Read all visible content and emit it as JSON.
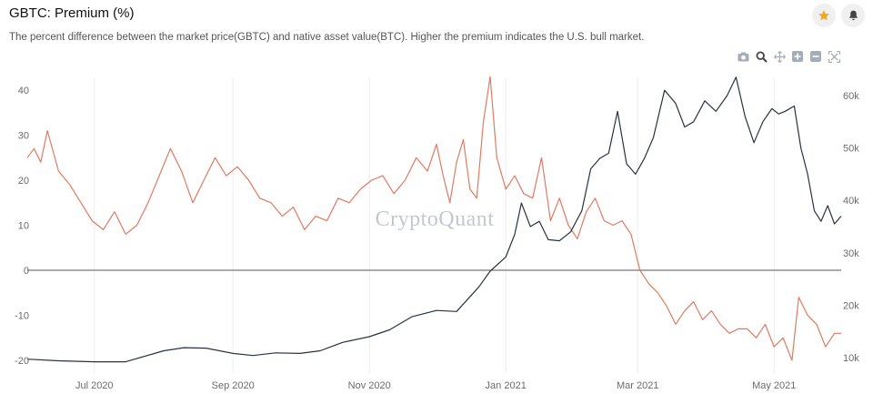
{
  "header": {
    "title": "GBTC: Premium (%)",
    "subtitle": "The percent difference between the market price(GBTC) and native asset value(BTC). Higher the premium indicates the U.S. bull market.",
    "star_icon": "star-icon",
    "bell_icon": "bell-icon",
    "accent": "#f5a623"
  },
  "modebar": [
    "camera-icon",
    "zoom-icon",
    "pan-icon",
    "zoom-in-icon",
    "zoom-out-icon",
    "autoscale-icon"
  ],
  "watermark": "CryptoQuant",
  "chart_data": {
    "type": "line",
    "x_range": [
      "2020-06-01",
      "2021-05-31"
    ],
    "x_ticks": [
      {
        "date": "2020-07-01",
        "label": "Jul 2020"
      },
      {
        "date": "2020-09-01",
        "label": "Sep 2020"
      },
      {
        "date": "2020-11-01",
        "label": "Nov 2020"
      },
      {
        "date": "2021-01-01",
        "label": "Jan 2021"
      },
      {
        "date": "2021-03-01",
        "label": "Mar 2021"
      },
      {
        "date": "2021-05-01",
        "label": "May 2021"
      }
    ],
    "y_left": {
      "range": [
        -20,
        44
      ],
      "ticks": [
        "40",
        "30",
        "20",
        "10",
        "0",
        "-10",
        "-20"
      ],
      "tick_values": [
        40,
        30,
        20,
        10,
        0,
        -10,
        -20
      ]
    },
    "y_right": {
      "range": [
        8000,
        66000
      ],
      "ticks": [
        "60k",
        "50k",
        "40k",
        "30k",
        "20k",
        "10k"
      ],
      "tick_values": [
        60000,
        50000,
        40000,
        30000,
        20000,
        10000
      ]
    },
    "zero_line": 0,
    "grid": "vertical",
    "series": [
      {
        "axis": "left",
        "color": "#e07a63",
        "x": [
          "2020-06-01",
          "2020-06-04",
          "2020-06-07",
          "2020-06-10",
          "2020-06-15",
          "2020-06-20",
          "2020-06-25",
          "2020-06-30",
          "2020-07-05",
          "2020-07-10",
          "2020-07-15",
          "2020-07-20",
          "2020-07-25",
          "2020-07-30",
          "2020-08-04",
          "2020-08-09",
          "2020-08-14",
          "2020-08-19",
          "2020-08-24",
          "2020-08-29",
          "2020-09-03",
          "2020-09-08",
          "2020-09-13",
          "2020-09-18",
          "2020-09-23",
          "2020-09-28",
          "2020-10-03",
          "2020-10-08",
          "2020-10-13",
          "2020-10-18",
          "2020-10-23",
          "2020-10-28",
          "2020-11-02",
          "2020-11-07",
          "2020-11-12",
          "2020-11-17",
          "2020-11-22",
          "2020-11-27",
          "2020-12-01",
          "2020-12-04",
          "2020-12-07",
          "2020-12-10",
          "2020-12-13",
          "2020-12-16",
          "2020-12-19",
          "2020-12-22",
          "2020-12-25",
          "2020-12-28",
          "2021-01-01",
          "2021-01-05",
          "2021-01-09",
          "2021-01-13",
          "2021-01-17",
          "2021-01-21",
          "2021-01-25",
          "2021-01-29",
          "2021-02-02",
          "2021-02-06",
          "2021-02-10",
          "2021-02-14",
          "2021-02-18",
          "2021-02-22",
          "2021-02-26",
          "2021-03-02",
          "2021-03-06",
          "2021-03-10",
          "2021-03-14",
          "2021-03-18",
          "2021-03-22",
          "2021-03-26",
          "2021-03-30",
          "2021-04-03",
          "2021-04-07",
          "2021-04-11",
          "2021-04-15",
          "2021-04-19",
          "2021-04-23",
          "2021-04-27",
          "2021-05-01",
          "2021-05-05",
          "2021-05-09",
          "2021-05-12",
          "2021-05-16",
          "2021-05-20",
          "2021-05-24",
          "2021-05-28",
          "2021-05-31"
        ],
        "values": [
          25,
          27,
          24,
          31,
          22,
          19,
          15,
          11,
          9,
          13,
          8,
          10,
          15,
          21,
          27,
          22,
          15,
          20,
          25,
          21,
          23,
          20,
          16,
          15,
          12,
          14,
          9,
          12,
          11,
          16,
          15,
          18,
          20,
          21,
          17,
          20,
          25,
          22,
          28,
          21,
          15,
          24,
          29,
          18,
          16,
          33,
          43,
          25,
          18,
          21,
          17,
          16,
          25,
          11,
          16,
          10,
          7,
          13,
          16,
          11,
          10,
          11,
          8,
          0,
          -3,
          -5,
          -8,
          -12,
          -9,
          -7,
          -11,
          -9,
          -12,
          -14,
          -13,
          -13,
          -15,
          -12,
          -17,
          -15,
          -20,
          -6,
          -10,
          -12,
          -17,
          -14,
          -14
        ]
      },
      {
        "axis": "right",
        "color": "#2a3140",
        "x": [
          "2020-06-01",
          "2020-06-15",
          "2020-07-01",
          "2020-07-15",
          "2020-08-01",
          "2020-08-10",
          "2020-08-20",
          "2020-09-01",
          "2020-09-10",
          "2020-09-20",
          "2020-10-01",
          "2020-10-10",
          "2020-10-20",
          "2020-11-01",
          "2020-11-10",
          "2020-11-20",
          "2020-12-01",
          "2020-12-10",
          "2020-12-20",
          "2020-12-25",
          "2021-01-01",
          "2021-01-05",
          "2021-01-08",
          "2021-01-12",
          "2021-01-16",
          "2021-01-20",
          "2021-01-25",
          "2021-01-30",
          "2021-02-04",
          "2021-02-08",
          "2021-02-12",
          "2021-02-16",
          "2021-02-20",
          "2021-02-24",
          "2021-02-28",
          "2021-03-04",
          "2021-03-08",
          "2021-03-13",
          "2021-03-18",
          "2021-03-22",
          "2021-03-26",
          "2021-03-31",
          "2021-04-05",
          "2021-04-10",
          "2021-04-14",
          "2021-04-18",
          "2021-04-22",
          "2021-04-26",
          "2021-04-30",
          "2021-05-03",
          "2021-05-06",
          "2021-05-10",
          "2021-05-13",
          "2021-05-16",
          "2021-05-19",
          "2021-05-22",
          "2021-05-25",
          "2021-05-28",
          "2021-05-31"
        ],
        "values": [
          9700,
          9400,
          9200,
          9200,
          11300,
          11900,
          11800,
          10800,
          10400,
          10900,
          10800,
          11300,
          12900,
          14000,
          15300,
          17800,
          19000,
          18800,
          23500,
          26500,
          29200,
          33500,
          39500,
          35000,
          36000,
          32500,
          32300,
          34000,
          38000,
          46000,
          48000,
          49000,
          57000,
          47000,
          45000,
          48000,
          52000,
          61000,
          58500,
          54000,
          55000,
          59000,
          57000,
          60000,
          63500,
          56000,
          51000,
          55000,
          57500,
          56500,
          57000,
          58000,
          50000,
          45000,
          38000,
          36000,
          39000,
          35500,
          37000
        ]
      }
    ]
  }
}
